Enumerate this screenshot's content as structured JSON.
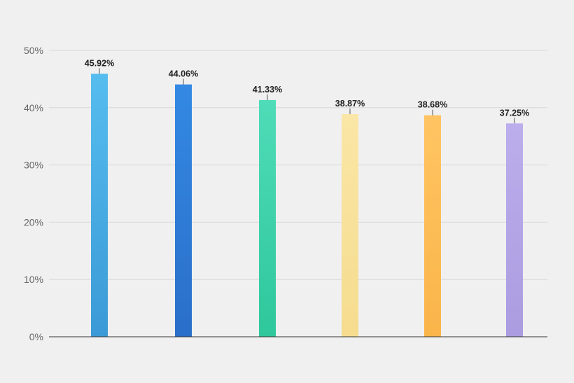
{
  "chart_data": {
    "type": "bar",
    "categories": [
      "",
      "",
      "",
      "",
      "",
      ""
    ],
    "values": [
      45.92,
      44.06,
      41.33,
      38.87,
      38.68,
      37.25
    ],
    "value_labels": [
      "45.92%",
      "44.06%",
      "41.33%",
      "38.87%",
      "38.68%",
      "37.25%"
    ],
    "bar_colors": [
      [
        "#56bdef",
        "#3b9ad6"
      ],
      [
        "#3389e3",
        "#2a6fc9"
      ],
      [
        "#4fdcb8",
        "#2fc79c"
      ],
      [
        "#fae6a6",
        "#f5dc8e"
      ],
      [
        "#ffc462",
        "#fab54a"
      ],
      [
        "#bcaeec",
        "#aa9cdf"
      ]
    ],
    "ylim": [
      0,
      50
    ],
    "yticks": [
      0,
      10,
      20,
      30,
      40,
      50
    ],
    "ytick_labels": [
      "0%",
      "10%",
      "20%",
      "30%",
      "40%",
      "50%"
    ],
    "grid": true,
    "title": "",
    "xlabel": "",
    "ylabel": ""
  }
}
